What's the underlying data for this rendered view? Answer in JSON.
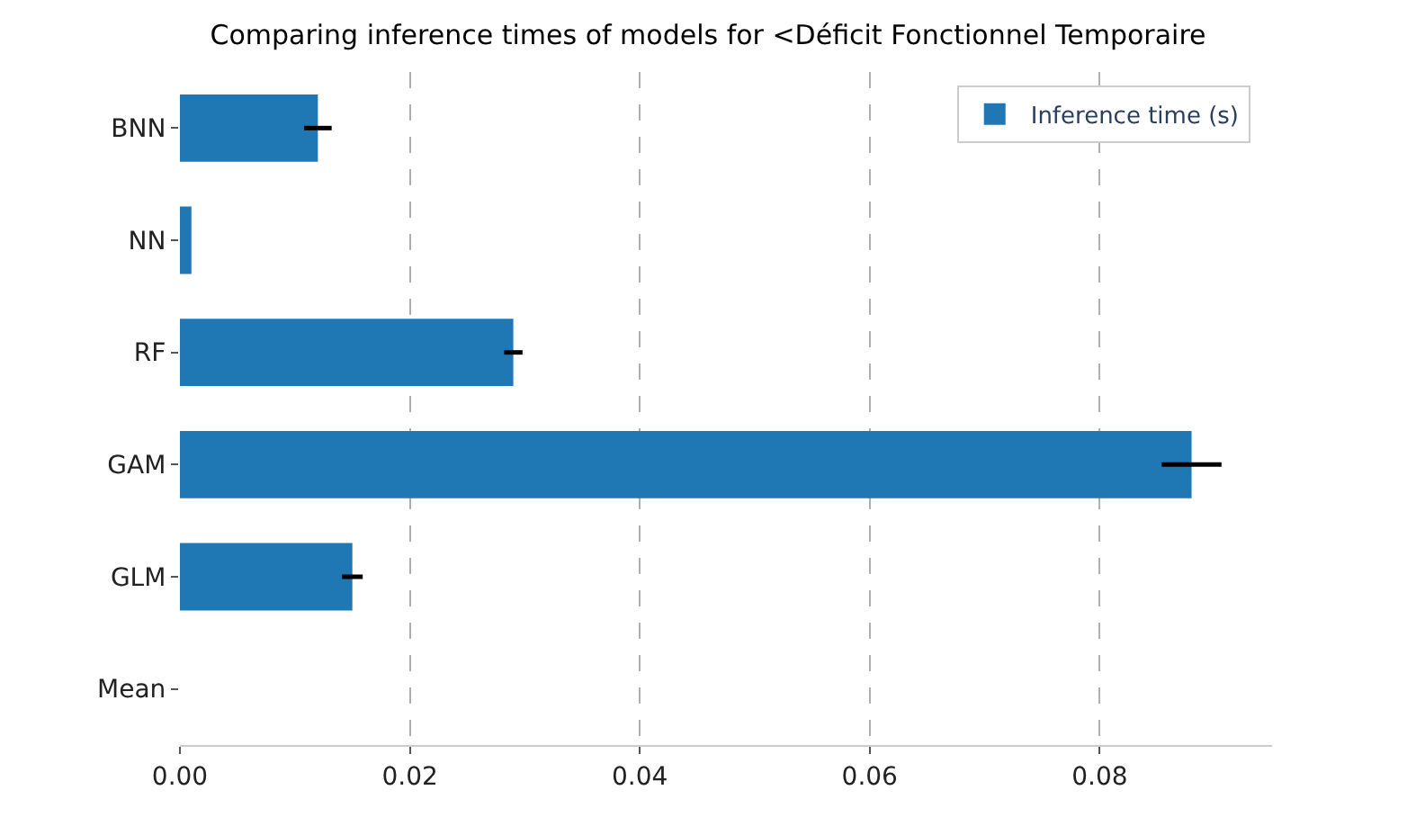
{
  "chart_data": {
    "type": "bar",
    "orientation": "horizontal",
    "title": "Comparing inference times of models for <Déficit Fonctionnel Temporaire",
    "categories": [
      "BNN",
      "NN",
      "RF",
      "GAM",
      "GLM",
      "Mean"
    ],
    "series": [
      {
        "name": "Inference time (s)",
        "color": "#1f77b4",
        "values": [
          0.012,
          0.001,
          0.029,
          0.088,
          0.015,
          0
        ],
        "errors": [
          0.0012,
          null,
          0.0008,
          0.0026,
          0.0009,
          null
        ]
      }
    ],
    "xlim": [
      0,
      0.095
    ],
    "xticks": [
      {
        "value": 0,
        "label": "0.00"
      },
      {
        "value": 0.02,
        "label": "0.02"
      },
      {
        "value": 0.04,
        "label": "0.04"
      },
      {
        "value": 0.06,
        "label": "0.06"
      },
      {
        "value": 0.08,
        "label": "0.08"
      }
    ],
    "grid": "x",
    "legend": "top right"
  }
}
